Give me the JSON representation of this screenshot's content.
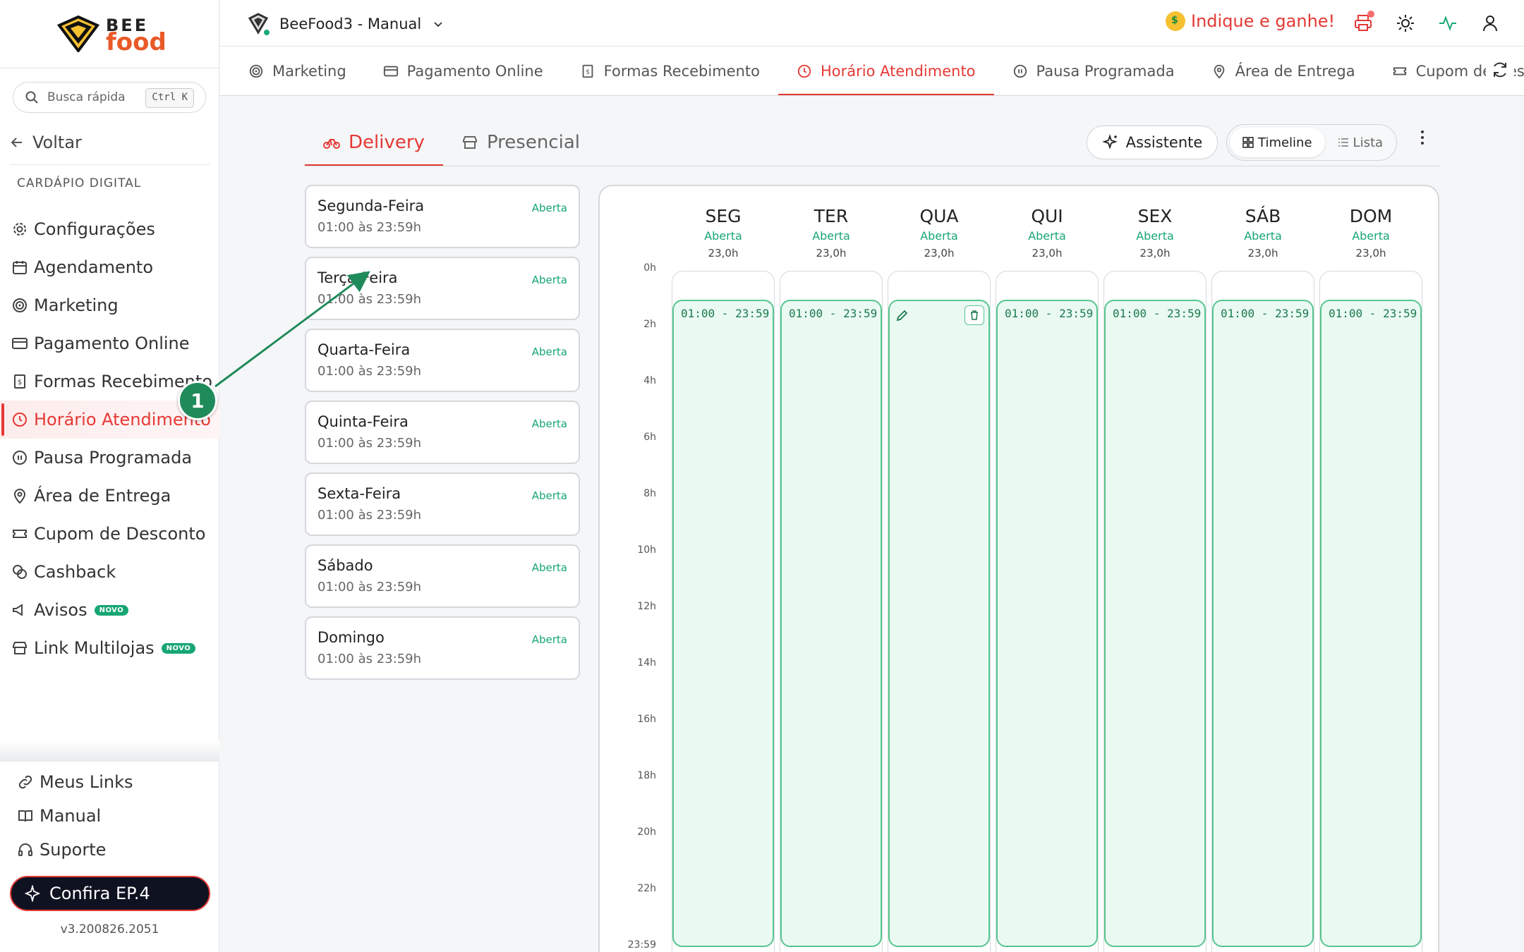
{
  "brand": {
    "line1": "BEE",
    "line2": "food"
  },
  "search": {
    "placeholder": "Busca rápida",
    "shortcut": "Ctrl K"
  },
  "sidebar": {
    "back_label": "Voltar",
    "section_label": "CARDÁPIO DIGITAL",
    "items": [
      {
        "label": "Configurações",
        "icon": "gear-icon"
      },
      {
        "label": "Agendamento",
        "icon": "calendar-icon"
      },
      {
        "label": "Marketing",
        "icon": "target-icon"
      },
      {
        "label": "Pagamento Online",
        "icon": "card-icon"
      },
      {
        "label": "Formas Recebimento",
        "icon": "receipt-icon"
      },
      {
        "label": "Horário Atendimento",
        "icon": "clock-icon",
        "active": true
      },
      {
        "label": "Pausa Programada",
        "icon": "pause-icon"
      },
      {
        "label": "Área de Entrega",
        "icon": "pin-icon"
      },
      {
        "label": "Cupom de Desconto",
        "icon": "ticket-icon"
      },
      {
        "label": "Cashback",
        "icon": "coins-icon"
      },
      {
        "label": "Avisos",
        "icon": "megaphone-icon",
        "badge": "NOVO"
      },
      {
        "label": "Link Multilojas",
        "icon": "store-icon",
        "badge": "NOVO"
      }
    ],
    "bottom_items": [
      {
        "label": "Meus Links",
        "icon": "link-icon"
      },
      {
        "label": "Manual",
        "icon": "book-icon"
      },
      {
        "label": "Suporte",
        "icon": "headset-icon"
      }
    ],
    "cta_label": "Confira EP.4",
    "version": "v3.200826.2051"
  },
  "topbar": {
    "store_name": "BeeFood3 - Manual",
    "referral_label": "Indique e ganhe!"
  },
  "tabs": [
    {
      "label": "Marketing",
      "icon": "target-icon"
    },
    {
      "label": "Pagamento Online",
      "icon": "card-icon"
    },
    {
      "label": "Formas Recebimento",
      "icon": "receipt-icon"
    },
    {
      "label": "Horário Atendimento",
      "icon": "clock-icon",
      "active": true
    },
    {
      "label": "Pausa Programada",
      "icon": "pause-icon"
    },
    {
      "label": "Área de Entrega",
      "icon": "pin-icon"
    },
    {
      "label": "Cupom de Desconto",
      "icon": "ticket-icon"
    }
  ],
  "subtabs": [
    {
      "label": "Delivery",
      "icon": "bike-icon",
      "active": true
    },
    {
      "label": "Presencial",
      "icon": "store-icon"
    }
  ],
  "toolbar": {
    "assistant_label": "Assistente",
    "timeline_label": "Timeline",
    "list_label": "Lista"
  },
  "days": [
    {
      "name": "Segunda-Feira",
      "hours": "01:00 às 23:59h",
      "status": "Aberta"
    },
    {
      "name": "Terça-Feira",
      "hours": "01:00 às 23:59h",
      "status": "Aberta"
    },
    {
      "name": "Quarta-Feira",
      "hours": "01:00 às 23:59h",
      "status": "Aberta"
    },
    {
      "name": "Quinta-Feira",
      "hours": "01:00 às 23:59h",
      "status": "Aberta"
    },
    {
      "name": "Sexta-Feira",
      "hours": "01:00 às 23:59h",
      "status": "Aberta"
    },
    {
      "name": "Sábado",
      "hours": "01:00 às 23:59h",
      "status": "Aberta"
    },
    {
      "name": "Domingo",
      "hours": "01:00 às 23:59h",
      "status": "Aberta"
    }
  ],
  "timeline": {
    "hour_labels": [
      "0h",
      "2h",
      "4h",
      "6h",
      "8h",
      "10h",
      "12h",
      "14h",
      "16h",
      "18h",
      "20h",
      "22h",
      "23:59"
    ],
    "columns": [
      {
        "day": "SEG",
        "status": "Aberta",
        "total": "23,0h",
        "range": "01:00 - 23:59"
      },
      {
        "day": "TER",
        "status": "Aberta",
        "total": "23,0h",
        "range": "01:00 - 23:59"
      },
      {
        "day": "QUA",
        "status": "Aberta",
        "total": "23,0h",
        "range": "",
        "hover": true
      },
      {
        "day": "QUI",
        "status": "Aberta",
        "total": "23,0h",
        "range": "01:00 - 23:59"
      },
      {
        "day": "SEX",
        "status": "Aberta",
        "total": "23,0h",
        "range": "01:00 - 23:59"
      },
      {
        "day": "SÁB",
        "status": "Aberta",
        "total": "23,0h",
        "range": "01:00 - 23:59"
      },
      {
        "day": "DOM",
        "status": "Aberta",
        "total": "23,0h",
        "range": "01:00 - 23:59"
      }
    ]
  },
  "annotation": {
    "step": "1"
  },
  "colors": {
    "accent": "#e53935",
    "success": "#17a673",
    "block_fill": "#eafaf2",
    "block_border": "#57c690"
  }
}
